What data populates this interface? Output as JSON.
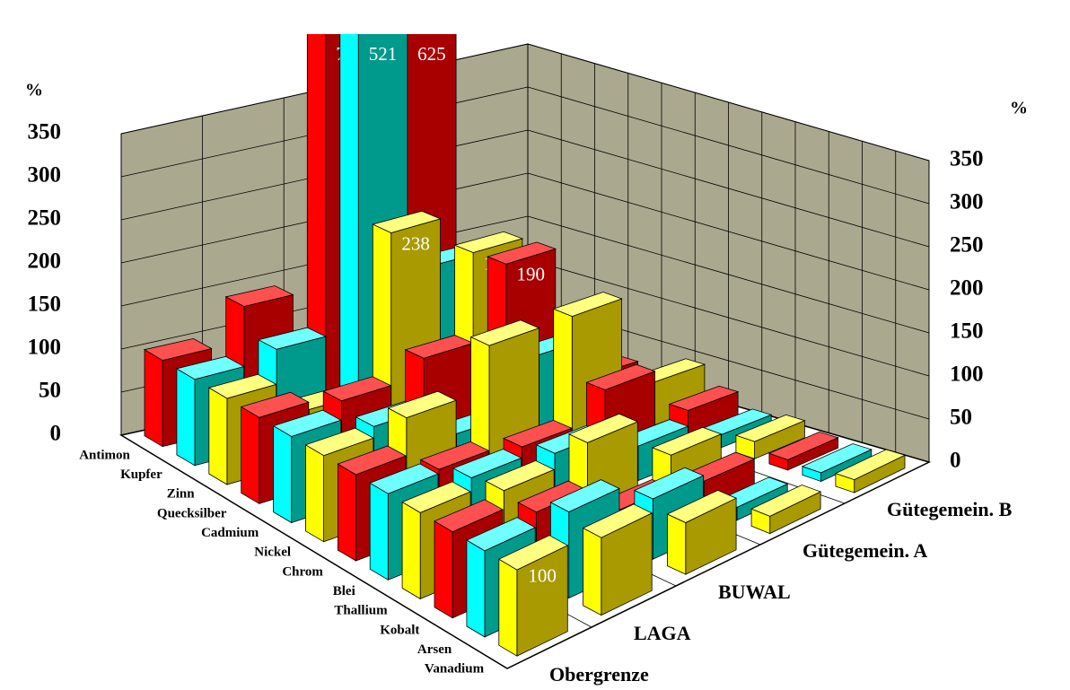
{
  "chart_data": {
    "type": "bar3d",
    "y_label": "%",
    "categories": [
      "Obergrenze",
      "LAGA",
      "BUWAL",
      "Gütegemein. A",
      "Gütegemein. B"
    ],
    "series": [
      {
        "name": "Antimon",
        "color": "#ff0000",
        "values": [
          100,
          140,
          780,
          625,
          55
        ],
        "value_labels": [
          null,
          null,
          "780",
          "625",
          null
        ]
      },
      {
        "name": "Kupfer",
        "color": "#00ffff",
        "values": [
          100,
          110,
          521,
          160,
          50
        ],
        "value_labels": [
          null,
          null,
          "521",
          null,
          null
        ]
      },
      {
        "name": "Zinn",
        "color": "#ffff00",
        "values": [
          100,
          60,
          238,
          188,
          40
        ],
        "value_labels": [
          null,
          null,
          "238",
          "188",
          null
        ]
      },
      {
        "name": "Quecksilber",
        "color": "#ff0000",
        "values": [
          100,
          90,
          110,
          190,
          30
        ],
        "value_labels": [
          null,
          null,
          null,
          "190",
          null
        ]
      },
      {
        "name": "Cadmium",
        "color": "#00ffff",
        "values": [
          100,
          80,
          40,
          100,
          20
        ],
        "value_labels": [
          null,
          null,
          null,
          null,
          null
        ]
      },
      {
        "name": "Nickel",
        "color": "#ffff00",
        "values": [
          100,
          110,
          160,
          160,
          50
        ],
        "value_labels": [
          null,
          null,
          null,
          null,
          null
        ]
      },
      {
        "name": "Chrom",
        "color": "#ff0000",
        "values": [
          100,
          70,
          60,
          90,
          30
        ],
        "value_labels": [
          null,
          null,
          null,
          null,
          null
        ]
      },
      {
        "name": "Blei",
        "color": "#00ffff",
        "values": [
          100,
          80,
          70,
          40,
          15
        ],
        "value_labels": [
          null,
          null,
          null,
          null,
          null
        ]
      },
      {
        "name": "Thallium",
        "color": "#ffff00",
        "values": [
          100,
          85,
          100,
          45,
          20
        ],
        "value_labels": [
          null,
          null,
          null,
          null,
          null
        ]
      },
      {
        "name": "Kobalt",
        "color": "#ff0000",
        "values": [
          100,
          80,
          40,
          30,
          12
        ],
        "value_labels": [
          null,
          null,
          null,
          null,
          null
        ]
      },
      {
        "name": "Arsen",
        "color": "#00ffff",
        "values": [
          100,
          100,
          70,
          15,
          10
        ],
        "value_labels": [
          null,
          null,
          null,
          null,
          null
        ]
      },
      {
        "name": "Vanadium",
        "color": "#ffff00",
        "values": [
          100,
          90,
          60,
          20,
          15
        ],
        "value_labels": [
          "100",
          null,
          null,
          null,
          null
        ]
      }
    ],
    "ylim": [
      0,
      350
    ],
    "yticks": [
      0,
      50,
      100,
      150,
      200,
      250,
      300,
      350
    ],
    "grid": true
  }
}
